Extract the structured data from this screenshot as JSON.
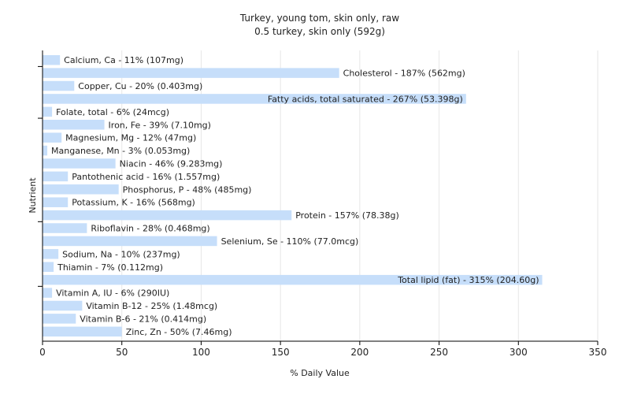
{
  "chart_data": {
    "type": "bar",
    "orientation": "horizontal",
    "title": "Turkey, young tom, skin only, raw",
    "subtitle": "0.5 turkey, skin only (592g)",
    "xlabel": "% Daily Value",
    "ylabel": "Nutrient",
    "xlim": [
      0,
      350
    ],
    "xticks": [
      0,
      50,
      100,
      150,
      200,
      250,
      300,
      350
    ],
    "grid": true,
    "bar_color": "#c6defa",
    "categories": [
      "Calcium, Ca",
      "Cholesterol",
      "Copper, Cu",
      "Fatty acids, total saturated",
      "Folate, total",
      "Iron, Fe",
      "Magnesium, Mg",
      "Manganese, Mn",
      "Niacin",
      "Pantothenic acid",
      "Phosphorus, P",
      "Potassium, K",
      "Protein",
      "Riboflavin",
      "Selenium, Se",
      "Sodium, Na",
      "Thiamin",
      "Total lipid (fat)",
      "Vitamin A, IU",
      "Vitamin B-12",
      "Vitamin B-6",
      "Zinc, Zn"
    ],
    "values": [
      11,
      187,
      20,
      267,
      6,
      39,
      12,
      3,
      46,
      16,
      48,
      16,
      157,
      28,
      110,
      10,
      7,
      315,
      6,
      25,
      21,
      50
    ],
    "labels": [
      "Calcium, Ca - 11% (107mg)",
      "Cholesterol - 187% (562mg)",
      "Copper, Cu - 20% (0.403mg)",
      "Fatty acids, total saturated - 267% (53.398g)",
      "Folate, total - 6% (24mcg)",
      "Iron, Fe - 39% (7.10mg)",
      "Magnesium, Mg - 12% (47mg)",
      "Manganese, Mn - 3% (0.053mg)",
      "Niacin - 46% (9.283mg)",
      "Pantothenic acid - 16% (1.557mg)",
      "Phosphorus, P - 48% (485mg)",
      "Potassium, K - 16% (568mg)",
      "Protein - 157% (78.38g)",
      "Riboflavin - 28% (0.468mg)",
      "Selenium, Se - 110% (77.0mcg)",
      "Sodium, Na - 10% (237mg)",
      "Thiamin - 7% (0.112mg)",
      "Total lipid (fat) - 315% (204.60g)",
      "Vitamin A, IU - 6% (290IU)",
      "Vitamin B-12 - 25% (1.48mcg)",
      "Vitamin B-6 - 21% (0.414mg)",
      "Zinc, Zn - 50% (7.46mg)"
    ]
  }
}
